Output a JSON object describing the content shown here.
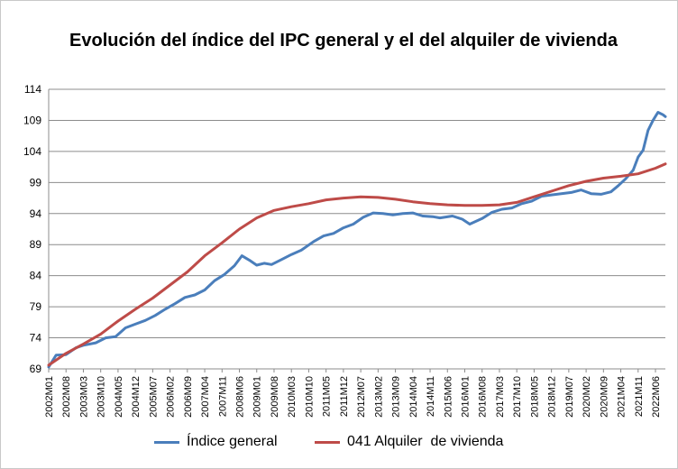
{
  "chart_data": {
    "type": "line",
    "title": "Evolución del índice del IPC general y el del alquiler de vivienda",
    "xlabel": "",
    "ylabel": "",
    "ylim": [
      69,
      114
    ],
    "yticks": [
      69,
      74,
      79,
      84,
      89,
      94,
      99,
      104,
      109,
      114
    ],
    "grid": true,
    "legend_position": "bottom",
    "x_tick_labels": [
      "2002M01",
      "2002M08",
      "2003M03",
      "2003M10",
      "2004M05",
      "2004M12",
      "2005M07",
      "2006M02",
      "2006M09",
      "2007M04",
      "2007M11",
      "2008M06",
      "2009M01",
      "2009M08",
      "2010M03",
      "2010M10",
      "2011M05",
      "2011M12",
      "2012M07",
      "2013M02",
      "2013M09",
      "2014M04",
      "2014M11",
      "2015M06",
      "2016M01",
      "2016M08",
      "2017M03",
      "2017M10",
      "2018M05",
      "2018M12",
      "2019M07",
      "2020M02",
      "2020M09",
      "2021M04",
      "2021M11",
      "2022M06"
    ],
    "x_start": "2002M01",
    "x_end": "2022M10",
    "series": [
      {
        "name": "Índice general",
        "color": "#4a7ebb",
        "points": [
          [
            "2002M01",
            69.3
          ],
          [
            "2002M04",
            71.2
          ],
          [
            "2002M08",
            71.3
          ],
          [
            "2002M12",
            72.4
          ],
          [
            "2003M03",
            72.8
          ],
          [
            "2003M08",
            73.2
          ],
          [
            "2003M12",
            74.0
          ],
          [
            "2004M04",
            74.2
          ],
          [
            "2004M08",
            75.6
          ],
          [
            "2004M12",
            76.2
          ],
          [
            "2005M04",
            76.8
          ],
          [
            "2005M08",
            77.6
          ],
          [
            "2005M12",
            78.6
          ],
          [
            "2006M04",
            79.5
          ],
          [
            "2006M08",
            80.5
          ],
          [
            "2006M12",
            80.9
          ],
          [
            "2007M04",
            81.7
          ],
          [
            "2007M08",
            83.2
          ],
          [
            "2007M12",
            84.2
          ],
          [
            "2008M04",
            85.6
          ],
          [
            "2008M07",
            87.2
          ],
          [
            "2008M10",
            86.5
          ],
          [
            "2009M01",
            85.7
          ],
          [
            "2009M04",
            86.0
          ],
          [
            "2009M07",
            85.8
          ],
          [
            "2009M11",
            86.6
          ],
          [
            "2010M03",
            87.4
          ],
          [
            "2010M07",
            88.1
          ],
          [
            "2010M12",
            89.5
          ],
          [
            "2011M04",
            90.4
          ],
          [
            "2011M08",
            90.8
          ],
          [
            "2011M12",
            91.7
          ],
          [
            "2012M04",
            92.3
          ],
          [
            "2012M08",
            93.4
          ],
          [
            "2012M12",
            94.1
          ],
          [
            "2013M04",
            94.0
          ],
          [
            "2013M08",
            93.8
          ],
          [
            "2013M12",
            94.0
          ],
          [
            "2014M04",
            94.1
          ],
          [
            "2014M08",
            93.6
          ],
          [
            "2014M12",
            93.5
          ],
          [
            "2015M03",
            93.3
          ],
          [
            "2015M08",
            93.6
          ],
          [
            "2015M12",
            93.1
          ],
          [
            "2016M03",
            92.3
          ],
          [
            "2016M08",
            93.2
          ],
          [
            "2016M12",
            94.2
          ],
          [
            "2017M04",
            94.7
          ],
          [
            "2017M08",
            94.9
          ],
          [
            "2017M12",
            95.6
          ],
          [
            "2018M04",
            96.0
          ],
          [
            "2018M08",
            96.8
          ],
          [
            "2018M12",
            97.0
          ],
          [
            "2019M04",
            97.2
          ],
          [
            "2019M08",
            97.4
          ],
          [
            "2019M12",
            97.8
          ],
          [
            "2020M04",
            97.2
          ],
          [
            "2020M08",
            97.1
          ],
          [
            "2020M12",
            97.5
          ],
          [
            "2021M03",
            98.5
          ],
          [
            "2021M06",
            99.6
          ],
          [
            "2021M09",
            101.0
          ],
          [
            "2021M11",
            103.1
          ],
          [
            "2022M01",
            104.2
          ],
          [
            "2022M03",
            107.4
          ],
          [
            "2022M05",
            109.0
          ],
          [
            "2022M07",
            110.3
          ],
          [
            "2022M09",
            109.9
          ],
          [
            "2022M10",
            109.6
          ]
        ]
      },
      {
        "name": "041 Alquiler  de vivienda",
        "color": "#be4b48",
        "points": [
          [
            "2002M01",
            69.6
          ],
          [
            "2002M08",
            71.5
          ],
          [
            "2003M03",
            73.0
          ],
          [
            "2003M10",
            74.6
          ],
          [
            "2004M05",
            76.7
          ],
          [
            "2004M12",
            78.6
          ],
          [
            "2005M07",
            80.4
          ],
          [
            "2006M02",
            82.5
          ],
          [
            "2006M09",
            84.6
          ],
          [
            "2007M04",
            87.2
          ],
          [
            "2007M11",
            89.3
          ],
          [
            "2008M06",
            91.5
          ],
          [
            "2009M01",
            93.3
          ],
          [
            "2009M08",
            94.5
          ],
          [
            "2010M03",
            95.1
          ],
          [
            "2010M10",
            95.6
          ],
          [
            "2011M05",
            96.2
          ],
          [
            "2011M12",
            96.5
          ],
          [
            "2012M07",
            96.7
          ],
          [
            "2013M02",
            96.6
          ],
          [
            "2013M09",
            96.3
          ],
          [
            "2014M04",
            95.9
          ],
          [
            "2014M11",
            95.6
          ],
          [
            "2015M06",
            95.4
          ],
          [
            "2016M01",
            95.3
          ],
          [
            "2016M08",
            95.3
          ],
          [
            "2017M03",
            95.4
          ],
          [
            "2017M10",
            95.8
          ],
          [
            "2018M05",
            96.7
          ],
          [
            "2018M12",
            97.6
          ],
          [
            "2019M07",
            98.5
          ],
          [
            "2020M02",
            99.2
          ],
          [
            "2020M09",
            99.7
          ],
          [
            "2021M04",
            100.0
          ],
          [
            "2021M11",
            100.4
          ],
          [
            "2022M06",
            101.3
          ],
          [
            "2022M10",
            102.0
          ]
        ]
      }
    ]
  }
}
